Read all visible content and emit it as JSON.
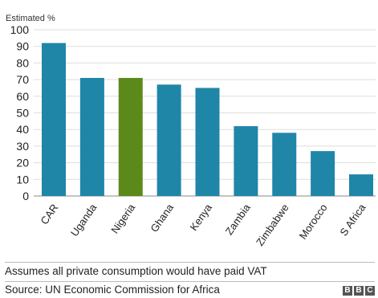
{
  "chart_data": {
    "type": "bar",
    "ylabel": "Estimated %",
    "ylim": [
      0,
      100
    ],
    "yticks": [
      0,
      10,
      20,
      30,
      40,
      50,
      60,
      70,
      80,
      90,
      100
    ],
    "grid": true,
    "categories": [
      "CAR",
      "Uganda",
      "Nigeria",
      "Ghana",
      "Kenya",
      "Zambia",
      "Zimbabwe",
      "Morocco",
      "S Africa"
    ],
    "values": [
      92,
      71,
      71,
      67,
      65,
      42,
      38,
      27,
      13
    ],
    "colors": [
      "#1f86a8",
      "#1f86a8",
      "#5b8a1a",
      "#1f86a8",
      "#1f86a8",
      "#1f86a8",
      "#1f86a8",
      "#1f86a8",
      "#1f86a8"
    ]
  },
  "footer": {
    "note": "Assumes all private consumption would have paid VAT",
    "source": "Source: UN Economic Commission for Africa",
    "logo": [
      "B",
      "B",
      "C"
    ]
  }
}
